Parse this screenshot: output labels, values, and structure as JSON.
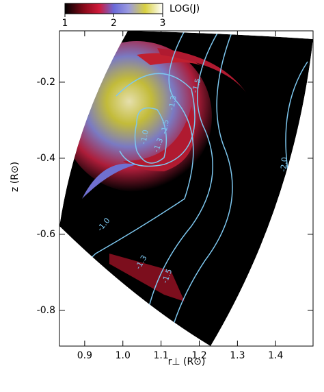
{
  "chart_data": {
    "type": "contour",
    "xlabel": "r⊥ (R⊙)",
    "ylabel": "z (R⊙)",
    "xlim": [
      0.834,
      1.498
    ],
    "xticks": [
      0.9,
      {
        "value": 1,
        "label": "1.0"
      },
      1.1,
      1.2,
      1.3,
      1.4
    ],
    "ylim": [
      -0.894,
      -0.065
    ],
    "yticks": [
      -0.2,
      -0.4,
      -0.6,
      -0.8
    ],
    "contour_color": "#7ec8f0",
    "contour_labels": [
      "-1.0",
      "-1.3",
      "-1.5",
      "-2.0",
      "-1.0",
      "-1.3",
      "-1.5",
      "-1.5",
      "-1.3"
    ],
    "colorbar": {
      "label": "LOG(J)",
      "lim": [
        1,
        3
      ],
      "ticks": [
        1,
        2,
        3
      ]
    }
  }
}
